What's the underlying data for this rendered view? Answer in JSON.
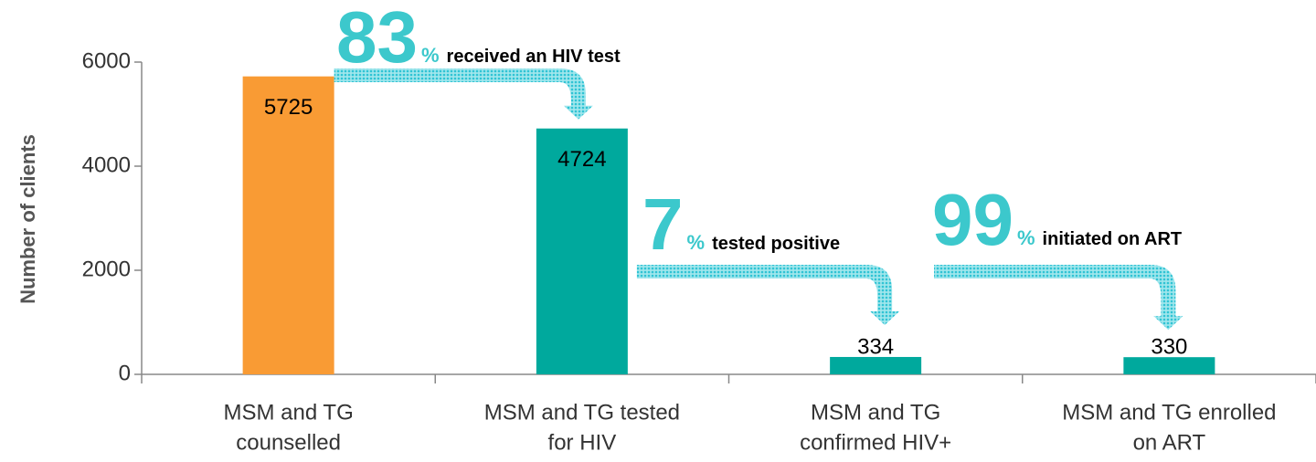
{
  "chart_data": {
    "type": "bar",
    "y_axis_label": "Number of clients",
    "categories": [
      [
        "MSM and TG",
        "counselled"
      ],
      [
        "MSM and TG tested",
        "for HIV"
      ],
      [
        "MSM and TG",
        "confirmed HIV+"
      ],
      [
        "MSM and TG enrolled",
        "on ART"
      ]
    ],
    "values": [
      5725,
      4724,
      334,
      330
    ],
    "colors": [
      "#f99b34",
      "#00a99d",
      "#00a99d",
      "#00a99d"
    ],
    "ylim": [
      0,
      6000
    ],
    "yticks": [
      0,
      2000,
      4000,
      6000
    ],
    "annotations": [
      {
        "number": 83,
        "unit": "%",
        "text": "received an HIV test"
      },
      {
        "number": 7,
        "unit": "%",
        "text": "tested positive"
      },
      {
        "number": 99,
        "unit": "%",
        "text": "initiated on ART"
      }
    ]
  }
}
